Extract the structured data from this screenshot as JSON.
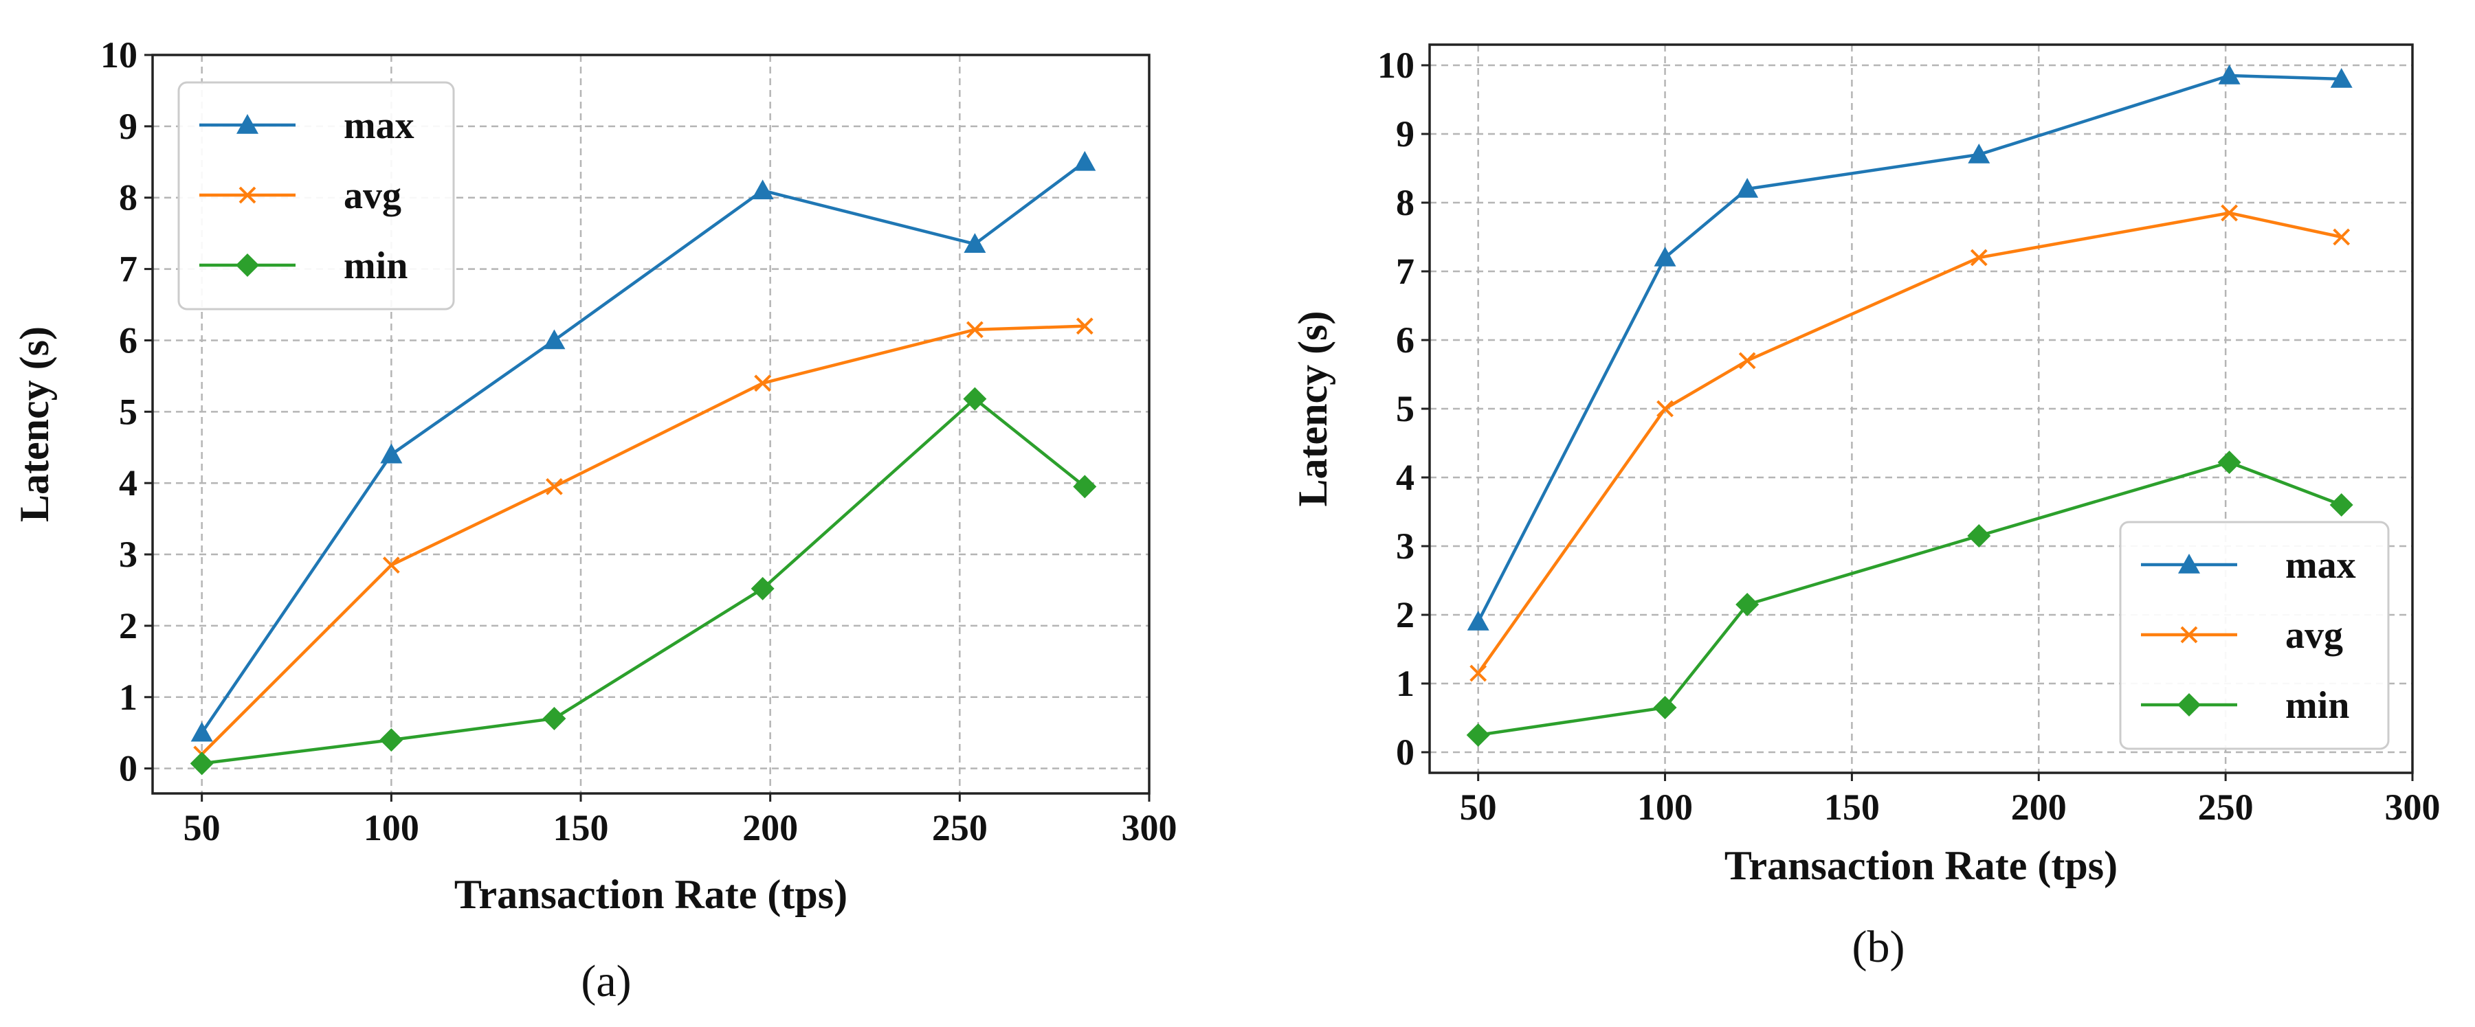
{
  "figure": {
    "captions": [
      "(a)",
      "(b)"
    ]
  },
  "colors": {
    "max": "#1f77b4",
    "avg": "#ff7f0e",
    "min": "#2ca02c"
  },
  "chart_data": [
    {
      "id": "a",
      "type": "line",
      "caption": "(a)",
      "title": "",
      "xlabel": "Transaction Rate (tps)",
      "ylabel": "Latency (s)",
      "xlim": [
        37,
        300
      ],
      "ylim": [
        -0.35,
        10
      ],
      "xticks": [
        50,
        100,
        150,
        200,
        250,
        300
      ],
      "yticks": [
        0,
        1,
        2,
        3,
        4,
        5,
        6,
        7,
        8,
        9,
        10
      ],
      "grid": true,
      "legend": "top-left",
      "series": [
        {
          "name": "max",
          "marker": "triangle",
          "x": [
            50,
            100,
            143,
            198,
            254,
            283
          ],
          "y": [
            0.5,
            4.4,
            6.0,
            8.1,
            7.35,
            8.5
          ]
        },
        {
          "name": "avg",
          "marker": "x",
          "x": [
            50,
            100,
            143,
            198,
            254,
            283
          ],
          "y": [
            0.2,
            2.85,
            3.95,
            5.4,
            6.15,
            6.2
          ]
        },
        {
          "name": "min",
          "marker": "diamond",
          "x": [
            50,
            100,
            143,
            198,
            254,
            283
          ],
          "y": [
            0.07,
            0.4,
            0.7,
            2.52,
            5.18,
            3.95
          ]
        }
      ]
    },
    {
      "id": "b",
      "type": "line",
      "caption": "(b)",
      "title": "",
      "xlabel": "Transaction Rate (tps)",
      "ylabel": "Latency (s)",
      "xlim": [
        37,
        300
      ],
      "ylim": [
        -0.3,
        10.3
      ],
      "xticks": [
        50,
        100,
        150,
        200,
        250,
        300
      ],
      "yticks": [
        0,
        1,
        2,
        3,
        4,
        5,
        6,
        7,
        8,
        9,
        10
      ],
      "grid": true,
      "legend": "bottom-right",
      "series": [
        {
          "name": "max",
          "marker": "triangle",
          "x": [
            50,
            100,
            122,
            184,
            251,
            281
          ],
          "y": [
            1.9,
            7.2,
            8.2,
            8.7,
            9.85,
            9.8
          ]
        },
        {
          "name": "avg",
          "marker": "x",
          "x": [
            50,
            100,
            122,
            184,
            251,
            281
          ],
          "y": [
            1.15,
            5.0,
            5.7,
            7.2,
            7.85,
            7.5
          ]
        },
        {
          "name": "min",
          "marker": "diamond",
          "x": [
            50,
            100,
            122,
            184,
            251,
            281
          ],
          "y": [
            0.25,
            0.65,
            2.15,
            3.15,
            4.22,
            3.6
          ]
        }
      ]
    }
  ]
}
